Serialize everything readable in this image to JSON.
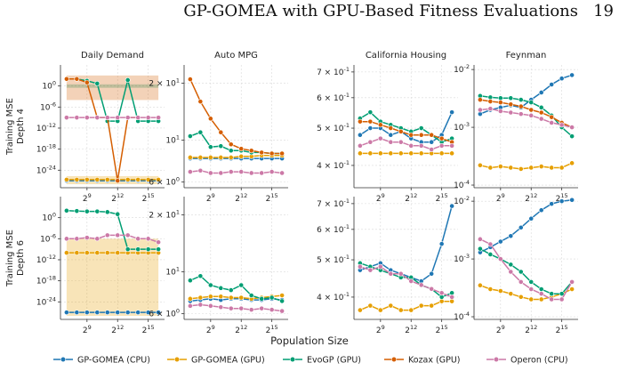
{
  "header": {
    "running_title": "GP-GOMEA with GPU-Based Fitness Evaluations",
    "page_number": "19"
  },
  "x_axis_label": "Population Size",
  "row_labels": [
    [
      "Training MSE",
      "Depth 4"
    ],
    [
      "Training MSE",
      "Depth 6"
    ]
  ],
  "legend": [
    {
      "name": "GP-GOMEA (CPU)",
      "color": "#1f77b4"
    },
    {
      "name": "GP-GOMEA (GPU)",
      "color": "#e69f00"
    },
    {
      "name": "EvoGP (GPU)",
      "color": "#009e73"
    },
    {
      "name": "Kozax (GPU)",
      "color": "#d55e00"
    },
    {
      "name": "Operon (CPU)",
      "color": "#cc79a7"
    }
  ],
  "chart_data": [
    {
      "type": "line",
      "title": "Daily Demand",
      "scale": "log",
      "ylim": [
        1e-29,
        1000000.0
      ],
      "yticks": [
        {
          "v": 1,
          "label": "10^0"
        },
        {
          "v": 1e-06,
          "label": "10^-6"
        },
        {
          "v": 1e-12,
          "label": "10^-12"
        },
        {
          "v": 1e-18,
          "label": "10^-18"
        },
        {
          "v": 1e-24,
          "label": "10^-24"
        }
      ],
      "x": [
        7,
        8,
        9,
        10,
        11,
        12,
        13,
        14,
        15,
        16
      ],
      "xticks": [
        {
          "v": 9,
          "label": "2^9"
        },
        {
          "v": 12,
          "label": "2^12"
        },
        {
          "v": 15,
          "label": "2^15"
        }
      ],
      "series": [
        {
          "name": "GP-GOMEA (CPU)",
          "values": [
            1e-27,
            1e-27,
            1e-27,
            1e-27,
            1e-27,
            1e-27,
            1e-27,
            1e-27,
            1e-27,
            1e-27
          ]
        },
        {
          "name": "GP-GOMEA (GPU)",
          "values": [
            2e-27,
            2e-27,
            2e-27,
            2e-27,
            2e-27,
            2e-27,
            2e-27,
            2e-27,
            2e-27,
            2e-27
          ],
          "band": [
            1e-28,
            2e-26
          ]
        },
        {
          "name": "EvoGP (GPU)",
          "values": [
            100,
            100,
            30,
            5,
            1e-10,
            1e-10,
            50,
            1e-10,
            1e-10,
            1e-10
          ],
          "band": [
            0.3,
            3
          ]
        },
        {
          "name": "Kozax (GPU)",
          "values": [
            100,
            100,
            10,
            1e-09,
            1e-09,
            1e-27,
            1e-09,
            1e-09,
            null,
            null
          ],
          "band": [
            1000.0,
            0.0001
          ]
        },
        {
          "name": "Operon (CPU)",
          "values": [
            1e-09,
            1e-09,
            1e-09,
            1e-09,
            1e-09,
            1e-09,
            1e-09,
            1e-09,
            1e-09,
            1e-09
          ]
        }
      ]
    },
    {
      "type": "line",
      "title": "Auto MPG",
      "scale": "log",
      "ylim": [
        5.6,
        25
      ],
      "yticks": [
        {
          "v": 20,
          "label": "2 × 10^1"
        },
        {
          "v": 10,
          "label": "10^1"
        },
        {
          "v": 6,
          "label": "6 × 10^0"
        }
      ],
      "x": [
        7,
        8,
        9,
        10,
        11,
        12,
        13,
        14,
        15,
        16
      ],
      "xticks": [
        {
          "v": 9,
          "label": "2^9"
        },
        {
          "v": 12,
          "label": "2^12"
        },
        {
          "v": 15,
          "label": "2^15"
        }
      ],
      "series": [
        {
          "name": "GP-GOMEA (CPU)",
          "values": [
            8.0,
            8.0,
            8.0,
            8.0,
            8.0,
            8.0,
            8.0,
            8.0,
            8.0,
            8.0
          ]
        },
        {
          "name": "GP-GOMEA (GPU)",
          "values": [
            8.1,
            8.1,
            8.1,
            8.1,
            8.1,
            8.2,
            8.2,
            8.3,
            8.3,
            8.3
          ]
        },
        {
          "name": "EvoGP (GPU)",
          "values": [
            10.5,
            11,
            9.2,
            9.3,
            8.8,
            8.8,
            8.6,
            8.6,
            8.5,
            8.5
          ]
        },
        {
          "name": "Kozax (GPU)",
          "values": [
            21,
            16,
            13,
            11,
            9.5,
            9,
            8.8,
            8.6,
            8.5,
            8.5
          ]
        },
        {
          "name": "Operon (CPU)",
          "values": [
            6.8,
            6.9,
            6.7,
            6.7,
            6.8,
            6.8,
            6.7,
            6.7,
            6.8,
            6.7
          ]
        }
      ]
    },
    {
      "type": "line",
      "title": "California Housing",
      "scale": "log",
      "ylim": [
        0.35,
        0.73
      ],
      "yticks": [
        {
          "v": 0.7,
          "label": "7 × 10^-1"
        },
        {
          "v": 0.6,
          "label": "6 × 10^-1"
        },
        {
          "v": 0.5,
          "label": "5 × 10^-1"
        },
        {
          "v": 0.4,
          "label": "4 × 10^-1"
        }
      ],
      "x": [
        7,
        8,
        9,
        10,
        11,
        12,
        13,
        14,
        15,
        16
      ],
      "xticks": [
        {
          "v": 9,
          "label": "2^9"
        },
        {
          "v": 12,
          "label": "2^12"
        },
        {
          "v": 15,
          "label": "2^15"
        }
      ],
      "series": [
        {
          "name": "GP-GOMEA (CPU)",
          "values": [
            0.48,
            0.5,
            0.5,
            0.48,
            0.49,
            0.47,
            0.46,
            0.46,
            0.48,
            0.55
          ]
        },
        {
          "name": "GP-GOMEA (GPU)",
          "values": [
            0.43,
            0.43,
            0.43,
            0.43,
            0.43,
            0.43,
            0.43,
            0.43,
            0.43,
            0.43
          ]
        },
        {
          "name": "EvoGP (GPU)",
          "values": [
            0.53,
            0.55,
            0.52,
            0.51,
            0.5,
            0.49,
            0.5,
            0.48,
            0.46,
            0.47
          ]
        },
        {
          "name": "Kozax (GPU)",
          "values": [
            0.52,
            0.52,
            0.51,
            0.5,
            0.49,
            0.48,
            0.48,
            0.48,
            0.47,
            0.46
          ]
        },
        {
          "name": "Operon (CPU)",
          "values": [
            0.45,
            0.46,
            0.47,
            0.46,
            0.46,
            0.45,
            0.45,
            0.44,
            0.45,
            0.45
          ]
        }
      ]
    },
    {
      "type": "line",
      "title": "Feynman",
      "scale": "log",
      "ylim": [
        9e-05,
        0.012
      ],
      "yticks": [
        {
          "v": 0.01,
          "label": "10^-2"
        },
        {
          "v": 0.001,
          "label": "10^-3"
        },
        {
          "v": 0.0001,
          "label": "10^-4"
        }
      ],
      "x": [
        7,
        8,
        9,
        10,
        11,
        12,
        13,
        14,
        15,
        16
      ],
      "xticks": [
        {
          "v": 9,
          "label": "2^9"
        },
        {
          "v": 12,
          "label": "2^12"
        },
        {
          "v": 15,
          "label": "2^15"
        }
      ],
      "series": [
        {
          "name": "GP-GOMEA (CPU)",
          "values": [
            0.0017,
            0.002,
            0.0022,
            0.0024,
            0.0022,
            0.003,
            0.004,
            0.0055,
            0.007,
            0.008
          ]
        },
        {
          "name": "GP-GOMEA (GPU)",
          "values": [
            0.00022,
            0.0002,
            0.00021,
            0.0002,
            0.00019,
            0.0002,
            0.00021,
            0.0002,
            0.0002,
            0.00024
          ]
        },
        {
          "name": "EvoGP (GPU)",
          "values": [
            0.0035,
            0.0033,
            0.0032,
            0.0032,
            0.003,
            0.0027,
            0.0022,
            0.0016,
            0.001,
            0.0007
          ]
        },
        {
          "name": "Kozax (GPU)",
          "values": [
            0.003,
            0.0028,
            0.0027,
            0.0025,
            0.0023,
            0.002,
            0.0018,
            0.0015,
            0.0012,
            0.001
          ]
        },
        {
          "name": "Operon (CPU)",
          "values": [
            0.002,
            0.0021,
            0.0019,
            0.0018,
            0.0017,
            0.0016,
            0.0014,
            0.0012,
            0.0011,
            0.001
          ]
        }
      ]
    },
    {
      "type": "line",
      "title": "",
      "scale": "log",
      "ylim": [
        1e-29,
        1000000.0
      ],
      "yticks": [
        {
          "v": 1,
          "label": "10^0"
        },
        {
          "v": 1e-06,
          "label": "10^-6"
        },
        {
          "v": 1e-12,
          "label": "10^-12"
        },
        {
          "v": 1e-18,
          "label": "10^-18"
        },
        {
          "v": 1e-24,
          "label": "10^-24"
        }
      ],
      "x": [
        7,
        8,
        9,
        10,
        11,
        12,
        13,
        14,
        15,
        16
      ],
      "xticks": [
        {
          "v": 9,
          "label": "2^9"
        },
        {
          "v": 12,
          "label": "2^12"
        },
        {
          "v": 15,
          "label": "2^15"
        }
      ],
      "series": [
        {
          "name": "GP-GOMEA (CPU)",
          "values": [
            1e-27,
            1e-27,
            1e-27,
            1e-27,
            1e-27,
            1e-27,
            1e-27,
            1e-27,
            1e-27,
            1e-27
          ]
        },
        {
          "name": "GP-GOMEA (GPU)",
          "values": [
            1e-10,
            1e-10,
            1e-10,
            1e-10,
            1e-10,
            1e-10,
            1e-10,
            1e-10,
            1e-10,
            1e-10
          ],
          "band": [
            1e-28,
            1e-06
          ]
        },
        {
          "name": "EvoGP (GPU)",
          "values": [
            100,
            80,
            60,
            60,
            40,
            10,
            1e-09,
            1e-09,
            1e-09,
            1e-09
          ]
        },
        {
          "name": "Operon (CPU)",
          "values": [
            1e-06,
            1e-06,
            2e-06,
            1e-06,
            1e-05,
            1e-05,
            1e-05,
            1e-06,
            1e-06,
            1e-07
          ]
        }
      ]
    },
    {
      "type": "line",
      "title": "",
      "scale": "log",
      "ylim": [
        5.6,
        25
      ],
      "yticks": [
        {
          "v": 20,
          "label": "2 × 10^1"
        },
        {
          "v": 10,
          "label": "10^1"
        },
        {
          "v": 6,
          "label": "6 × 10^0"
        }
      ],
      "x": [
        7,
        8,
        9,
        10,
        11,
        12,
        13,
        14,
        15,
        16
      ],
      "xticks": [
        {
          "v": 9,
          "label": "2^9"
        },
        {
          "v": 12,
          "label": "2^12"
        },
        {
          "v": 15,
          "label": "2^15"
        }
      ],
      "series": [
        {
          "name": "GP-GOMEA (CPU)",
          "values": [
            7.0,
            7.1,
            7.2,
            7.1,
            7.2,
            7.2,
            7.1,
            7.1,
            7.2,
            7.1
          ]
        },
        {
          "name": "GP-GOMEA (GPU)",
          "values": [
            7.2,
            7.3,
            7.4,
            7.4,
            7.3,
            7.3,
            7.2,
            7.3,
            7.4,
            7.5
          ]
        },
        {
          "name": "EvoGP (GPU)",
          "values": [
            9.0,
            9.5,
            8.5,
            8.2,
            8.0,
            8.5,
            7.5,
            7.2,
            7.3,
            7.0
          ]
        },
        {
          "name": "Operon (CPU)",
          "values": [
            6.6,
            6.7,
            6.6,
            6.5,
            6.4,
            6.4,
            6.3,
            6.4,
            6.3,
            6.2
          ]
        }
      ]
    },
    {
      "type": "line",
      "title": "",
      "scale": "log",
      "ylim": [
        0.35,
        0.73
      ],
      "yticks": [
        {
          "v": 0.7,
          "label": "7 × 10^-1"
        },
        {
          "v": 0.6,
          "label": "6 × 10^-1"
        },
        {
          "v": 0.5,
          "label": "5 × 10^-1"
        },
        {
          "v": 0.4,
          "label": "4 × 10^-1"
        }
      ],
      "x": [
        7,
        8,
        9,
        10,
        11,
        12,
        13,
        14,
        15,
        16
      ],
      "xticks": [
        {
          "v": 9,
          "label": "2^9"
        },
        {
          "v": 12,
          "label": "2^12"
        },
        {
          "v": 15,
          "label": "2^15"
        }
      ],
      "series": [
        {
          "name": "GP-GOMEA (CPU)",
          "values": [
            0.47,
            0.48,
            0.49,
            0.47,
            0.46,
            0.45,
            0.44,
            0.46,
            0.55,
            0.69
          ]
        },
        {
          "name": "GP-GOMEA (GPU)",
          "values": [
            0.37,
            0.38,
            0.37,
            0.38,
            0.37,
            0.37,
            0.38,
            0.38,
            0.39,
            0.39
          ]
        },
        {
          "name": "EvoGP (GPU)",
          "values": [
            0.49,
            0.48,
            0.47,
            0.46,
            0.45,
            0.45,
            0.43,
            0.42,
            0.4,
            0.41
          ]
        },
        {
          "name": "Operon (CPU)",
          "values": [
            0.48,
            0.47,
            0.48,
            0.46,
            0.46,
            0.44,
            0.43,
            0.42,
            0.41,
            0.4
          ]
        }
      ]
    },
    {
      "type": "line",
      "title": "",
      "scale": "log",
      "ylim": [
        9e-05,
        0.012
      ],
      "yticks": [
        {
          "v": 0.01,
          "label": "10^-2"
        },
        {
          "v": 0.001,
          "label": "10^-3"
        },
        {
          "v": 0.0001,
          "label": "10^-4"
        }
      ],
      "x": [
        7,
        8,
        9,
        10,
        11,
        12,
        13,
        14,
        15,
        16
      ],
      "xticks": [
        {
          "v": 9,
          "label": "2^9"
        },
        {
          "v": 12,
          "label": "2^12"
        },
        {
          "v": 15,
          "label": "2^15"
        }
      ],
      "series": [
        {
          "name": "GP-GOMEA (CPU)",
          "values": [
            0.0013,
            0.0016,
            0.002,
            0.0025,
            0.0035,
            0.005,
            0.007,
            0.009,
            0.01,
            0.0105
          ]
        },
        {
          "name": "GP-GOMEA (GPU)",
          "values": [
            0.00035,
            0.0003,
            0.00028,
            0.00025,
            0.00022,
            0.0002,
            0.0002,
            0.00022,
            0.00025,
            0.0003
          ]
        },
        {
          "name": "EvoGP (GPU)",
          "values": [
            0.0015,
            0.0012,
            0.001,
            0.0008,
            0.0006,
            0.0004,
            0.0003,
            0.00025,
            0.00025,
            0.0004
          ]
        },
        {
          "name": "Operon (CPU)",
          "values": [
            0.0022,
            0.0018,
            0.001,
            0.0006,
            0.0004,
            0.0003,
            0.00025,
            0.0002,
            0.0002,
            0.0004
          ]
        }
      ]
    }
  ]
}
